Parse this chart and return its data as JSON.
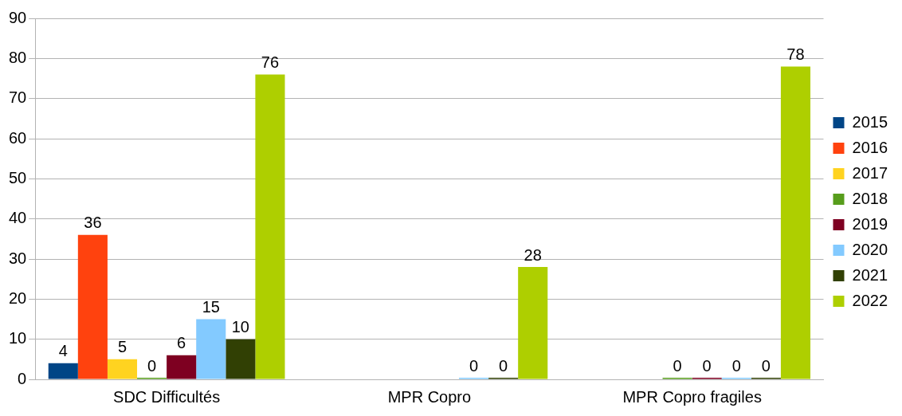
{
  "chart_data": {
    "type": "bar",
    "categories": [
      "SDC Difficultés",
      "MPR Copro",
      "MPR Copro fragiles"
    ],
    "series": [
      {
        "name": "2015",
        "color": "#004586",
        "values": [
          4,
          null,
          null
        ]
      },
      {
        "name": "2016",
        "color": "#ff420e",
        "values": [
          36,
          null,
          null
        ]
      },
      {
        "name": "2017",
        "color": "#ffd320",
        "values": [
          5,
          null,
          null
        ]
      },
      {
        "name": "2018",
        "color": "#579d1c",
        "values": [
          0,
          null,
          0
        ]
      },
      {
        "name": "2019",
        "color": "#7e0021",
        "values": [
          6,
          null,
          0
        ]
      },
      {
        "name": "2020",
        "color": "#83caff",
        "values": [
          15,
          0,
          0
        ]
      },
      {
        "name": "2021",
        "color": "#314004",
        "values": [
          10,
          0,
          0
        ]
      },
      {
        "name": "2022",
        "color": "#aecf00",
        "values": [
          76,
          28,
          78
        ]
      }
    ],
    "ylim": [
      0,
      90
    ],
    "yticks": [
      0,
      10,
      20,
      30,
      40,
      50,
      60,
      70,
      80,
      90
    ],
    "grid": "y",
    "legend": "right",
    "data_labels": true
  }
}
